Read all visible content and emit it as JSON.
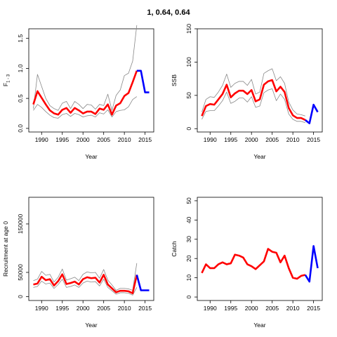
{
  "title": "1, 0.64, 0.64",
  "colors": {
    "estimate": "#ff0000",
    "forecast": "#0000ff",
    "bounds": "#888888",
    "axis": "#000000"
  },
  "chart_data": [
    {
      "type": "line",
      "xlabel": "Year",
      "ylabel": "F",
      "ylabel_sub": "1 - 3",
      "xlim": [
        1986.9,
        2017.1
      ],
      "ylim": [
        -0.06,
        1.66
      ],
      "xticks": [
        "1990",
        "1995",
        "2000",
        "2005",
        "2010",
        "2015"
      ],
      "yticks": [
        "0.0",
        "0.5",
        "1.0",
        "1.5"
      ],
      "x": [
        1988,
        1989,
        1990,
        1991,
        1992,
        1993,
        1994,
        1995,
        1996,
        1997,
        1998,
        1999,
        2000,
        2001,
        2002,
        2003,
        2004,
        2005,
        2006,
        2007,
        2008,
        2009,
        2010,
        2011,
        2012,
        2013,
        2014,
        2015,
        2016
      ],
      "series": [
        {
          "role": "upper",
          "values": [
            0.33,
            0.9,
            0.7,
            0.5,
            0.38,
            0.33,
            0.3,
            0.42,
            0.45,
            0.33,
            0.45,
            0.4,
            0.33,
            0.4,
            0.39,
            0.32,
            0.4,
            0.38,
            0.57,
            0.3,
            0.55,
            0.64,
            0.88,
            0.92,
            1.12,
            1.72,
            null,
            null,
            null
          ]
        },
        {
          "role": "lower",
          "values": [
            0.3,
            0.4,
            0.35,
            0.28,
            0.22,
            0.18,
            0.17,
            0.23,
            0.25,
            0.2,
            0.25,
            0.23,
            0.19,
            0.21,
            0.22,
            0.19,
            0.26,
            0.24,
            0.31,
            0.19,
            0.28,
            0.3,
            0.31,
            0.36,
            0.48,
            0.53,
            null,
            null,
            null
          ]
        },
        {
          "role": "estimate",
          "values": [
            0.4,
            0.62,
            0.51,
            0.4,
            0.3,
            0.25,
            0.23,
            0.31,
            0.34,
            0.26,
            0.34,
            0.3,
            0.25,
            0.28,
            0.28,
            0.24,
            0.33,
            0.31,
            0.4,
            0.23,
            0.38,
            0.42,
            0.54,
            0.59,
            0.77,
            0.96,
            null,
            null,
            null
          ]
        },
        {
          "role": "forecast",
          "values": [
            null,
            null,
            null,
            null,
            null,
            null,
            null,
            null,
            null,
            null,
            null,
            null,
            null,
            null,
            null,
            null,
            null,
            null,
            null,
            null,
            null,
            null,
            null,
            null,
            null,
            0.96,
            0.96,
            0.6,
            0.6
          ]
        }
      ]
    },
    {
      "type": "line",
      "xlabel": "Year",
      "ylabel": "SSB",
      "xlim": [
        1986.9,
        2017.1
      ],
      "ylim": [
        -5,
        150
      ],
      "xticks": [
        "1990",
        "1995",
        "2000",
        "2005",
        "2010",
        "2015"
      ],
      "yticks": [
        "0",
        "50",
        "100",
        "150"
      ],
      "x": [
        1988,
        1989,
        1990,
        1991,
        1992,
        1993,
        1994,
        1995,
        1996,
        1997,
        1998,
        1999,
        2000,
        2001,
        2002,
        2003,
        2004,
        2005,
        2006,
        2007,
        2008,
        2009,
        2010,
        2011,
        2012,
        2013,
        2014,
        2015,
        2016
      ],
      "series": [
        {
          "role": "upper",
          "values": [
            25,
            44,
            48,
            47,
            55,
            65,
            82,
            62,
            68,
            71,
            71,
            65,
            74,
            52,
            55,
            83,
            87,
            90,
            72,
            78,
            68,
            40,
            28,
            22,
            21,
            19,
            null,
            null,
            null
          ]
        },
        {
          "role": "lower",
          "values": [
            14,
            26,
            27,
            27,
            34,
            42,
            55,
            38,
            41,
            46,
            46,
            40,
            48,
            32,
            34,
            54,
            58,
            60,
            42,
            52,
            44,
            22,
            14,
            11,
            11,
            9,
            null,
            null,
            null
          ]
        },
        {
          "role": "estimate",
          "values": [
            19,
            34,
            37,
            36,
            44,
            52,
            66,
            47,
            53,
            57,
            57,
            52,
            58,
            41,
            44,
            66,
            71,
            73,
            56,
            63,
            55,
            31,
            20,
            16,
            16,
            13,
            null,
            null,
            null
          ]
        },
        {
          "role": "forecast",
          "values": [
            null,
            null,
            null,
            null,
            null,
            null,
            null,
            null,
            null,
            null,
            null,
            null,
            null,
            null,
            null,
            null,
            null,
            null,
            null,
            null,
            null,
            null,
            null,
            null,
            null,
            13,
            8,
            36,
            25
          ]
        }
      ]
    },
    {
      "type": "line",
      "xlabel": "Year",
      "ylabel": "Recruitment at age 0",
      "xlim": [
        1986.9,
        2017.1
      ],
      "ylim": [
        -8000,
        205000
      ],
      "xticks": [
        "1990",
        "1995",
        "2000",
        "2005",
        "2010",
        "2015"
      ],
      "yticks": [
        "0",
        "50000",
        "150000"
      ],
      "x": [
        1988,
        1989,
        1990,
        1991,
        1992,
        1993,
        1994,
        1995,
        1996,
        1997,
        1998,
        1999,
        2000,
        2001,
        2002,
        2003,
        2004,
        2005,
        2006,
        2007,
        2008,
        2009,
        2010,
        2011,
        2012,
        2013,
        2014,
        2015,
        2016
      ],
      "series": [
        {
          "role": "upper",
          "values": [
            33000,
            36000,
            52000,
            44000,
            46000,
            30000,
            40000,
            57000,
            34000,
            37000,
            40000,
            33000,
            46000,
            51000,
            49000,
            50000,
            38000,
            56000,
            34000,
            24000,
            13000,
            17000,
            17000,
            16000,
            13000,
            69000,
            null,
            null,
            null
          ]
        },
        {
          "role": "lower",
          "values": [
            19000,
            21000,
            32000,
            26000,
            28000,
            17000,
            25000,
            36000,
            19000,
            21000,
            24000,
            19000,
            28000,
            32000,
            30000,
            31000,
            22000,
            36000,
            19000,
            12000,
            5000,
            8000,
            8000,
            7000,
            3000,
            19000,
            null,
            null,
            null
          ]
        },
        {
          "role": "estimate",
          "values": [
            25000,
            27000,
            41000,
            34000,
            36000,
            23000,
            32000,
            46000,
            26000,
            28000,
            31000,
            25000,
            36000,
            40000,
            38000,
            39000,
            29000,
            45000,
            25000,
            17000,
            9000,
            12000,
            12000,
            11000,
            7000,
            45000,
            null,
            null,
            null
          ]
        },
        {
          "role": "forecast",
          "values": [
            null,
            null,
            null,
            null,
            null,
            null,
            null,
            null,
            null,
            null,
            null,
            null,
            null,
            null,
            null,
            null,
            null,
            null,
            null,
            null,
            null,
            null,
            null,
            null,
            null,
            45000,
            13000,
            13000,
            13000
          ]
        }
      ]
    },
    {
      "type": "line",
      "xlabel": "Year",
      "ylabel": "Catch",
      "xlim": [
        1986.9,
        2017.1
      ],
      "ylim": [
        -1.8,
        51.8
      ],
      "xticks": [
        "1990",
        "1995",
        "2000",
        "2005",
        "2010",
        "2015"
      ],
      "yticks": [
        "0",
        "10",
        "20",
        "30",
        "40",
        "50"
      ],
      "x": [
        1988,
        1989,
        1990,
        1991,
        1992,
        1993,
        1994,
        1995,
        1996,
        1997,
        1998,
        1999,
        2000,
        2001,
        2002,
        2003,
        2004,
        2005,
        2006,
        2007,
        2008,
        2009,
        2010,
        2011,
        2012,
        2013,
        2014,
        2015,
        2016
      ],
      "series": [
        {
          "role": "estimate",
          "values": [
            12.5,
            17,
            15,
            15,
            17,
            18,
            17,
            17.5,
            22,
            21.5,
            20.5,
            17,
            16,
            14.5,
            16.5,
            18.5,
            25,
            23.5,
            23,
            18,
            21.5,
            15,
            10,
            9.5,
            11,
            11.5,
            null,
            null,
            null
          ]
        },
        {
          "role": "forecast",
          "values": [
            null,
            null,
            null,
            null,
            null,
            null,
            null,
            null,
            null,
            null,
            null,
            null,
            null,
            null,
            null,
            null,
            null,
            null,
            null,
            null,
            null,
            null,
            null,
            null,
            null,
            11.5,
            8,
            26.5,
            15
          ]
        }
      ]
    }
  ]
}
